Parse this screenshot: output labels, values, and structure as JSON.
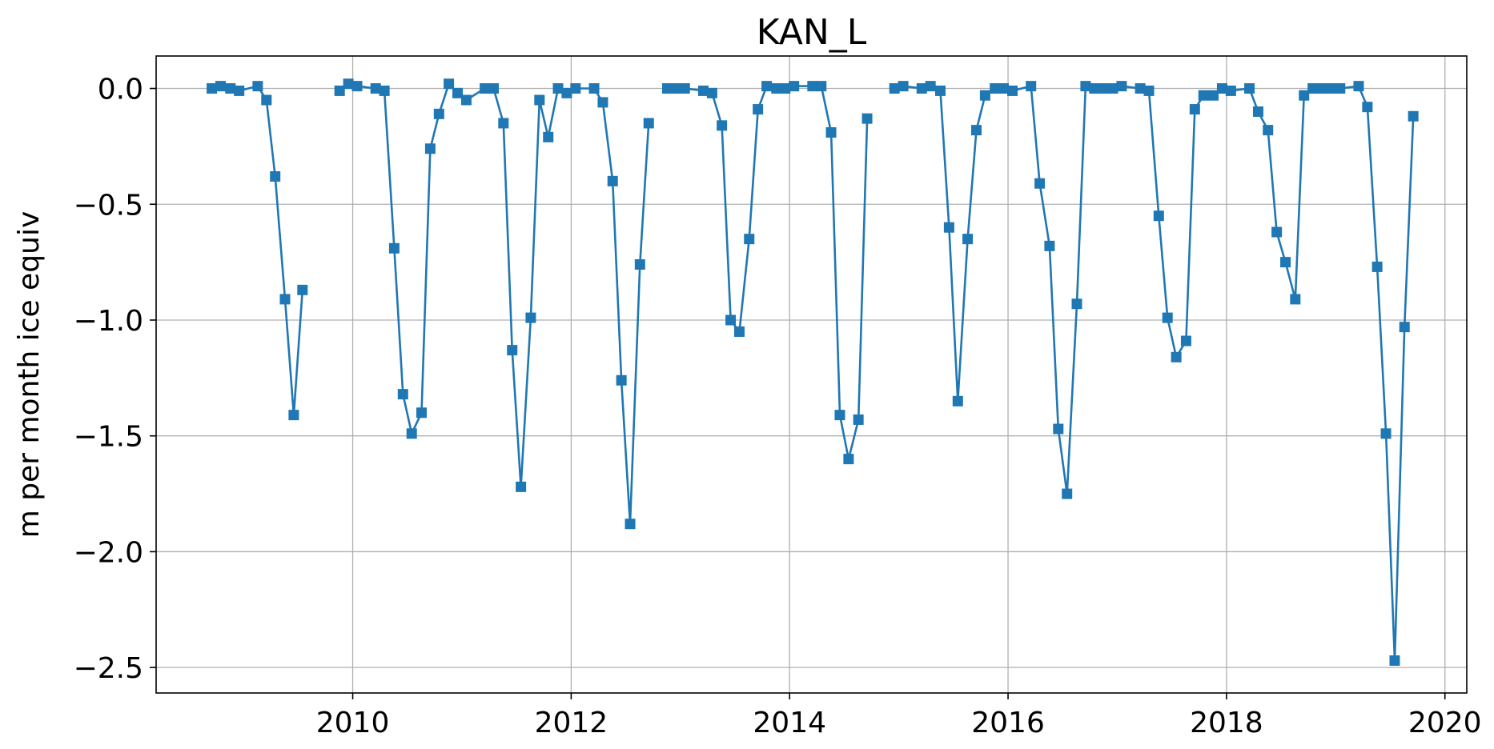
{
  "chart_data": {
    "type": "line",
    "title": "KAN_L",
    "xlabel": "",
    "ylabel": "m per month ice equiv",
    "xlim": [
      2008.2,
      2020.2
    ],
    "ylim": [
      -2.61,
      0.14
    ],
    "x_ticks": [
      2010,
      2012,
      2014,
      2016,
      2018,
      2020
    ],
    "x_tick_labels": [
      "2010",
      "2012",
      "2014",
      "2016",
      "2018",
      "2020"
    ],
    "y_ticks": [
      0.0,
      -0.5,
      -1.0,
      -1.5,
      -2.0,
      -2.5
    ],
    "y_tick_labels": [
      "0.0",
      "−0.5",
      "−1.0",
      "−1.5",
      "−2.0",
      "−2.5"
    ],
    "grid": true,
    "marker": "square",
    "color": "#1f77b4",
    "series": [
      {
        "segments": [
          [
            [
              2008.71,
              0.0
            ],
            [
              2008.79,
              0.01
            ],
            [
              2008.88,
              0.0
            ],
            [
              2008.96,
              -0.01
            ],
            [
              2009.13,
              0.01
            ],
            [
              2009.21,
              -0.05
            ],
            [
              2009.29,
              -0.38
            ],
            [
              2009.38,
              -0.91
            ],
            [
              2009.46,
              -1.41
            ],
            [
              2009.54,
              -0.87
            ]
          ],
          [
            [
              2009.88,
              -0.01
            ],
            [
              2009.96,
              0.02
            ],
            [
              2010.04,
              0.01
            ],
            [
              2010.21,
              0.0
            ],
            [
              2010.29,
              -0.01
            ],
            [
              2010.38,
              -0.69
            ],
            [
              2010.46,
              -1.32
            ],
            [
              2010.54,
              -1.49
            ],
            [
              2010.63,
              -1.4
            ],
            [
              2010.71,
              -0.26
            ],
            [
              2010.79,
              -0.11
            ],
            [
              2010.88,
              0.02
            ],
            [
              2010.96,
              -0.02
            ],
            [
              2011.04,
              -0.05
            ],
            [
              2011.21,
              0.0
            ],
            [
              2011.29,
              0.0
            ],
            [
              2011.38,
              -0.15
            ],
            [
              2011.46,
              -1.13
            ],
            [
              2011.54,
              -1.72
            ],
            [
              2011.63,
              -0.99
            ],
            [
              2011.71,
              -0.05
            ],
            [
              2011.79,
              -0.21
            ],
            [
              2011.88,
              0.0
            ],
            [
              2011.96,
              -0.02
            ],
            [
              2012.04,
              0.0
            ],
            [
              2012.21,
              0.0
            ],
            [
              2012.29,
              -0.06
            ],
            [
              2012.38,
              -0.4
            ],
            [
              2012.46,
              -1.26
            ],
            [
              2012.54,
              -1.88
            ],
            [
              2012.63,
              -0.76
            ],
            [
              2012.71,
              -0.15
            ]
          ],
          [
            [
              2012.88,
              0.0
            ],
            [
              2012.96,
              0.0
            ],
            [
              2013.04,
              0.0
            ],
            [
              2013.21,
              -0.01
            ],
            [
              2013.29,
              -0.02
            ],
            [
              2013.38,
              -0.16
            ],
            [
              2013.46,
              -1.0
            ],
            [
              2013.54,
              -1.05
            ],
            [
              2013.63,
              -0.65
            ],
            [
              2013.71,
              -0.09
            ],
            [
              2013.79,
              0.01
            ],
            [
              2013.88,
              0.0
            ],
            [
              2013.96,
              0.0
            ],
            [
              2014.04,
              0.01
            ],
            [
              2014.21,
              0.01
            ],
            [
              2014.29,
              0.01
            ],
            [
              2014.38,
              -0.19
            ],
            [
              2014.46,
              -1.41
            ],
            [
              2014.54,
              -1.6
            ],
            [
              2014.63,
              -1.43
            ],
            [
              2014.71,
              -0.13
            ]
          ],
          [
            [
              2014.96,
              0.0
            ],
            [
              2015.04,
              0.01
            ],
            [
              2015.21,
              0.0
            ],
            [
              2015.29,
              0.01
            ],
            [
              2015.38,
              -0.01
            ],
            [
              2015.46,
              -0.6
            ],
            [
              2015.54,
              -1.35
            ],
            [
              2015.63,
              -0.65
            ],
            [
              2015.71,
              -0.18
            ],
            [
              2015.79,
              -0.03
            ],
            [
              2015.88,
              0.0
            ],
            [
              2015.96,
              0.0
            ],
            [
              2016.04,
              -0.01
            ],
            [
              2016.21,
              0.01
            ],
            [
              2016.29,
              -0.41
            ],
            [
              2016.38,
              -0.68
            ],
            [
              2016.46,
              -1.47
            ],
            [
              2016.54,
              -1.75
            ],
            [
              2016.63,
              -0.93
            ],
            [
              2016.71,
              0.01
            ],
            [
              2016.79,
              0.0
            ],
            [
              2016.88,
              0.0
            ],
            [
              2016.96,
              0.0
            ],
            [
              2017.04,
              0.01
            ],
            [
              2017.21,
              0.0
            ],
            [
              2017.29,
              -0.01
            ],
            [
              2017.38,
              -0.55
            ],
            [
              2017.46,
              -0.99
            ],
            [
              2017.54,
              -1.16
            ],
            [
              2017.63,
              -1.09
            ],
            [
              2017.71,
              -0.09
            ],
            [
              2017.79,
              -0.03
            ],
            [
              2017.88,
              -0.03
            ],
            [
              2017.96,
              0.0
            ],
            [
              2018.04,
              -0.01
            ],
            [
              2018.21,
              0.0
            ],
            [
              2018.29,
              -0.1
            ],
            [
              2018.38,
              -0.18
            ],
            [
              2018.46,
              -0.62
            ],
            [
              2018.54,
              -0.75
            ],
            [
              2018.63,
              -0.91
            ],
            [
              2018.71,
              -0.03
            ],
            [
              2018.79,
              0.0
            ],
            [
              2018.88,
              0.0
            ],
            [
              2018.96,
              0.0
            ],
            [
              2019.04,
              0.0
            ],
            [
              2019.21,
              0.01
            ],
            [
              2019.29,
              -0.08
            ],
            [
              2019.38,
              -0.77
            ],
            [
              2019.46,
              -1.49
            ],
            [
              2019.54,
              -2.47
            ],
            [
              2019.63,
              -1.03
            ],
            [
              2019.71,
              -0.12
            ]
          ]
        ]
      }
    ]
  }
}
